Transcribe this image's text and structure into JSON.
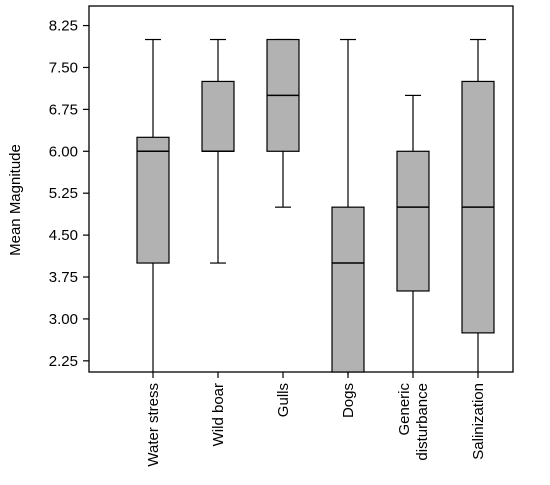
{
  "chart_data": {
    "type": "boxplot",
    "ylabel": "Mean Magnitude",
    "ylim": [
      2.05,
      8.6
    ],
    "yticks": [
      "2.25",
      "3.00",
      "3.75",
      "4.50",
      "5.25",
      "6.00",
      "6.75",
      "7.50",
      "8.25"
    ],
    "grid": false,
    "box_color": "#b2b2b2",
    "categories": [
      "Water stress",
      "Wild boar",
      "Gulls",
      "Dogs",
      "Generic disturbance",
      "Salinization"
    ],
    "category_labels": [
      [
        "Water stress"
      ],
      [
        "Wild boar"
      ],
      [
        "Gulls"
      ],
      [
        "Dogs"
      ],
      [
        "Generic",
        "disturbance"
      ],
      [
        "Salinization"
      ]
    ],
    "boxes": [
      {
        "category": "Water stress",
        "min": 2.0,
        "q1": 4.0,
        "median": 6.0,
        "q3": 6.25,
        "max": 8.0
      },
      {
        "category": "Wild boar",
        "min": 4.0,
        "q1": 6.0,
        "median": 6.0,
        "q3": 7.25,
        "max": 8.0
      },
      {
        "category": "Gulls",
        "min": 5.0,
        "q1": 6.0,
        "median": 7.0,
        "q3": 8.0,
        "max": 8.0
      },
      {
        "category": "Dogs",
        "min": 2.0,
        "q1": 2.0,
        "median": 4.0,
        "q3": 5.0,
        "max": 8.0
      },
      {
        "category": "Generic disturbance",
        "min": 2.0,
        "q1": 3.5,
        "median": 5.0,
        "q3": 6.0,
        "max": 7.0
      },
      {
        "category": "Salinization",
        "min": 2.0,
        "q1": 2.75,
        "median": 5.0,
        "q3": 7.25,
        "max": 8.0
      }
    ]
  }
}
